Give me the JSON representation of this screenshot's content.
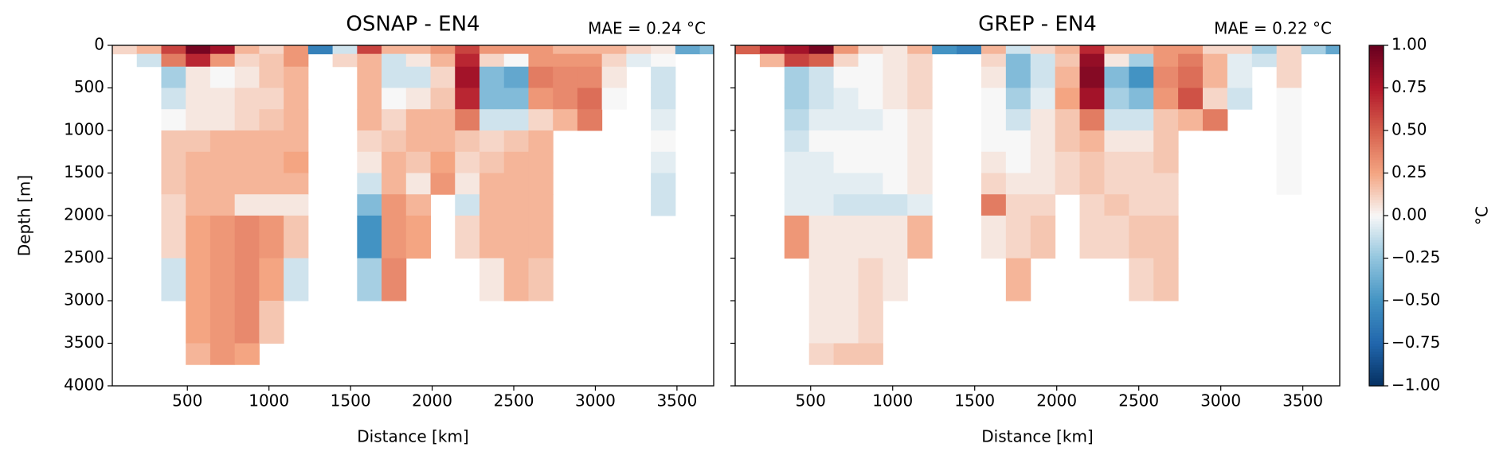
{
  "chart_data": [
    {
      "type": "heatmap",
      "title": "OSNAP - EN4",
      "annotation": "MAE = 0.24 °C",
      "xlabel": "Distance [km]",
      "ylabel": "Depth [m]",
      "x_edges": [
        40,
        190,
        340,
        490,
        640,
        790,
        940,
        1090,
        1240,
        1390,
        1540,
        1690,
        1840,
        1990,
        2140,
        2290,
        2440,
        2590,
        2740,
        2890,
        3040,
        3190,
        3340,
        3490,
        3640,
        3725
      ],
      "y_edges": [
        0,
        100,
        250,
        500,
        750,
        1000,
        1250,
        1500,
        1750,
        2000,
        2500,
        3000,
        3500,
        3750
      ],
      "values": [
        [
          0.1,
          null,
          null,
          null,
          null,
          null,
          null,
          null,
          null,
          null,
          null,
          null,
          null
        ],
        [
          0.2,
          -0.1,
          null,
          null,
          null,
          null,
          null,
          null,
          null,
          null,
          null,
          null,
          null
        ],
        [
          0.6,
          0.4,
          -0.2,
          -0.1,
          0,
          0.15,
          0.15,
          0.15,
          0.1,
          0.1,
          -0.1,
          null,
          null
        ],
        [
          0.95,
          0.7,
          0.05,
          0.05,
          0.05,
          0.15,
          0.2,
          0.2,
          0.2,
          0.25,
          0.25,
          0.25,
          0.2
        ],
        [
          0.8,
          0.3,
          0,
          0.05,
          0.05,
          0.2,
          0.2,
          0.2,
          0.2,
          0.3,
          0.3,
          0.3,
          0.3
        ],
        [
          0.2,
          0.1,
          0.05,
          0.1,
          0.1,
          0.2,
          0.2,
          0.2,
          0.05,
          0.35,
          0.35,
          0.35,
          0.25
        ],
        [
          0.1,
          0.15,
          0.15,
          0.1,
          0.15,
          0.2,
          0.2,
          0.2,
          0.05,
          0.3,
          0.25,
          0.15,
          null
        ],
        [
          0.3,
          0.3,
          0.2,
          0.2,
          0.2,
          0.2,
          0.25,
          0.2,
          0.05,
          0.15,
          -0.1,
          null,
          null
        ],
        [
          -0.6,
          null,
          null,
          null,
          null,
          null,
          null,
          null,
          null,
          null,
          null,
          null,
          null
        ],
        [
          -0.1,
          0.1,
          null,
          null,
          null,
          null,
          null,
          null,
          null,
          null,
          null,
          null,
          null
        ],
        [
          0.6,
          0.2,
          0.2,
          0.2,
          0.2,
          0.1,
          0.05,
          -0.1,
          -0.3,
          -0.5,
          -0.2,
          null,
          null
        ],
        [
          0.2,
          -0.1,
          -0.1,
          0,
          0.1,
          0.15,
          0.2,
          0.2,
          0.3,
          0.3,
          0.35,
          null,
          null
        ],
        [
          0.2,
          0.05,
          -0.1,
          0.05,
          0.2,
          0.2,
          0.15,
          0.05,
          0.2,
          0.25,
          null,
          null,
          null
        ],
        [
          0.3,
          0.2,
          0.1,
          0.15,
          0.2,
          0.2,
          0.25,
          0.3,
          null,
          null,
          null,
          null,
          null
        ],
        [
          0.6,
          0.7,
          0.8,
          0.7,
          0.4,
          0.15,
          0.1,
          0.05,
          -0.1,
          0.1,
          null,
          null,
          null
        ],
        [
          0.3,
          0.1,
          -0.3,
          -0.3,
          -0.1,
          0.1,
          0.15,
          0.2,
          0.2,
          0.2,
          0.05,
          null,
          null
        ],
        [
          0.3,
          0,
          -0.4,
          -0.3,
          -0.1,
          0.15,
          0.2,
          0.2,
          0.2,
          0.2,
          0.2,
          null,
          null
        ],
        [
          0.3,
          0.3,
          0.4,
          0.3,
          0.1,
          0.2,
          0.2,
          0.2,
          0.2,
          0.2,
          0.15,
          null,
          null
        ],
        [
          0.2,
          0.3,
          0.35,
          0.35,
          0.2,
          null,
          null,
          null,
          null,
          null,
          null,
          null,
          null
        ],
        [
          0.2,
          0.3,
          0.35,
          0.45,
          0.4,
          null,
          null,
          null,
          null,
          null,
          null,
          null,
          null
        ],
        [
          0.2,
          0.1,
          0.05,
          0,
          null,
          null,
          null,
          null,
          null,
          null,
          null,
          null,
          null
        ],
        [
          0.1,
          -0.05,
          null,
          null,
          null,
          null,
          null,
          null,
          null,
          null,
          null,
          null,
          null
        ],
        [
          0.05,
          0,
          -0.1,
          -0.1,
          -0.05,
          0,
          -0.05,
          -0.1,
          -0.1,
          null,
          null,
          null,
          null
        ],
        [
          -0.4,
          null,
          null,
          null,
          null,
          null,
          null,
          null,
          null,
          null,
          null,
          null,
          null
        ],
        [
          -0.3,
          null,
          null,
          null,
          null,
          null,
          null,
          null,
          null,
          null,
          null,
          null,
          null
        ]
      ],
      "xlim": [
        40,
        3725
      ],
      "ylim": [
        4000,
        0
      ],
      "xticks": [
        500,
        1000,
        1500,
        2000,
        2500,
        3000,
        3500
      ],
      "yticks": [
        0,
        500,
        1000,
        1500,
        2000,
        2500,
        3000,
        3500,
        4000
      ],
      "show_ytick_labels": true,
      "colormap": "RdBu_r",
      "clim": [
        -1,
        1
      ]
    },
    {
      "type": "heatmap",
      "title": "GREP - EN4",
      "annotation": "MAE = 0.22 °C",
      "xlabel": "Distance [km]",
      "x_edges": [
        40,
        190,
        340,
        490,
        640,
        790,
        940,
        1090,
        1240,
        1390,
        1540,
        1690,
        1840,
        1990,
        2140,
        2290,
        2440,
        2590,
        2740,
        2890,
        3040,
        3190,
        3340,
        3490,
        3640,
        3725
      ],
      "y_edges": [
        0,
        100,
        250,
        500,
        750,
        1000,
        1250,
        1500,
        1750,
        2000,
        2500,
        3000,
        3500,
        3750
      ],
      "values": [
        [
          0.5,
          null,
          null,
          null,
          null,
          null,
          null,
          null,
          null,
          null,
          null,
          null,
          null
        ],
        [
          0.7,
          0.2,
          null,
          null,
          null,
          null,
          null,
          null,
          null,
          null,
          null,
          null,
          null
        ],
        [
          0.8,
          0.6,
          -0.2,
          -0.2,
          -0.15,
          -0.1,
          -0.05,
          -0.05,
          -0.05,
          0.3,
          null,
          null,
          null
        ],
        [
          0.95,
          0.5,
          -0.1,
          -0.1,
          -0.05,
          0,
          -0.05,
          -0.05,
          -0.05,
          0.05,
          0.05,
          0.05,
          0.1
        ],
        [
          0.3,
          0.1,
          0,
          -0.05,
          -0.05,
          0,
          0,
          -0.05,
          -0.1,
          0.05,
          0.05,
          0.05,
          0.15
        ],
        [
          0.1,
          0,
          0,
          0,
          -0.05,
          0,
          0,
          -0.05,
          -0.1,
          0.05,
          0.1,
          0.1,
          0.15
        ],
        [
          0.05,
          0.05,
          0.05,
          0.05,
          0,
          0,
          0,
          0,
          -0.1,
          0.05,
          0.05,
          null,
          null
        ],
        [
          0.2,
          0.1,
          0.1,
          0.1,
          0.05,
          0.05,
          0.05,
          0.05,
          -0.05,
          0.2,
          null,
          null,
          null
        ],
        [
          -0.5,
          null,
          null,
          null,
          null,
          null,
          null,
          null,
          null,
          null,
          null,
          null,
          null
        ],
        [
          -0.6,
          null,
          null,
          null,
          null,
          null,
          null,
          null,
          null,
          null,
          null,
          null,
          null
        ],
        [
          0.2,
          0.1,
          0.05,
          0,
          0,
          0,
          0.05,
          0.1,
          0.4,
          0.05,
          null,
          null,
          null
        ],
        [
          -0.1,
          -0.3,
          -0.3,
          -0.2,
          -0.1,
          0,
          0,
          0.05,
          0.1,
          0.1,
          0.2,
          null,
          null
        ],
        [
          0.1,
          -0.1,
          -0.1,
          -0.05,
          0.05,
          0.05,
          0.05,
          0.05,
          0.1,
          0.15,
          null,
          null,
          null
        ],
        [
          0.2,
          0.15,
          0.2,
          0.25,
          0.15,
          0.15,
          0.1,
          0.1,
          null,
          null,
          null,
          null,
          null
        ],
        [
          0.7,
          0.85,
          0.9,
          0.8,
          0.4,
          0.2,
          0.15,
          0.15,
          0.1,
          0.1,
          null,
          null,
          null
        ],
        [
          0.2,
          0.05,
          -0.3,
          -0.2,
          -0.1,
          0.05,
          0.1,
          0.1,
          0.15,
          0.1,
          null,
          null,
          null
        ],
        [
          0.2,
          -0.2,
          -0.5,
          -0.3,
          -0.1,
          0.05,
          0.1,
          0.1,
          0.1,
          0.15,
          0.1,
          null,
          null
        ],
        [
          0.3,
          0.3,
          0.35,
          0.3,
          0.15,
          0.15,
          0.15,
          0.1,
          0.1,
          0.15,
          0.15,
          null,
          null
        ],
        [
          0.3,
          0.4,
          0.45,
          0.55,
          0.2,
          null,
          null,
          null,
          null,
          null,
          null,
          null,
          null
        ],
        [
          0.1,
          0.2,
          0.2,
          0.1,
          0.4,
          null,
          null,
          null,
          null,
          null,
          null,
          null,
          null
        ],
        [
          0.1,
          -0.05,
          -0.05,
          -0.1,
          null,
          null,
          null,
          null,
          null,
          null,
          null,
          null,
          null
        ],
        [
          -0.2,
          -0.1,
          null,
          null,
          null,
          null,
          null,
          null,
          null,
          null,
          null,
          null,
          null
        ],
        [
          0.1,
          0.1,
          0.1,
          0,
          0,
          0,
          0,
          0,
          null,
          null,
          null,
          null,
          null
        ],
        [
          -0.2,
          null,
          null,
          null,
          null,
          null,
          null,
          null,
          null,
          null,
          null,
          null,
          null
        ],
        [
          -0.4,
          null,
          null,
          null,
          null,
          null,
          null,
          null,
          null,
          null,
          null,
          null,
          null
        ]
      ],
      "xlim": [
        40,
        3725
      ],
      "ylim": [
        4000,
        0
      ],
      "xticks": [
        500,
        1000,
        1500,
        2000,
        2500,
        3000,
        3500
      ],
      "yticks": [
        0,
        500,
        1000,
        1500,
        2000,
        2500,
        3000,
        3500,
        4000
      ],
      "show_ytick_labels": false,
      "colormap": "RdBu_r",
      "clim": [
        -1,
        1
      ],
      "colorbar": {
        "label": "°C",
        "lim": [
          -1,
          1
        ],
        "ticks": [
          {
            "value": 1,
            "label": "1.00"
          },
          {
            "value": 0.75,
            "label": "0.75"
          },
          {
            "value": 0.5,
            "label": "0.50"
          },
          {
            "value": 0.25,
            "label": "0.25"
          },
          {
            "value": 0,
            "label": "0.00"
          },
          {
            "value": -0.25,
            "label": "−0.25"
          },
          {
            "value": -0.5,
            "label": "−0.50"
          },
          {
            "value": -0.75,
            "label": "−0.75"
          },
          {
            "value": -1,
            "label": "−1.00"
          }
        ]
      }
    }
  ]
}
